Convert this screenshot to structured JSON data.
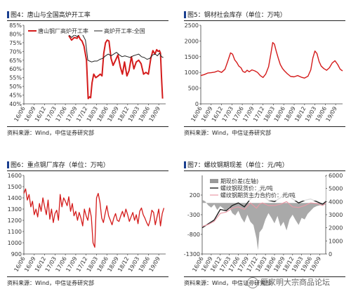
{
  "source_note": "资料来源：Wind，中信证券研究部",
  "watermark": "雁家明大宗商品论坛",
  "colors": {
    "red": "#d41b1b",
    "black": "#222222",
    "gray": "#9a9a9a",
    "pink": "#e89aa6",
    "accent": "#1a3f8f"
  },
  "chart_data": [
    {
      "type": "line",
      "title": "图4：唐山与全国高炉开工率",
      "legend_position": "top",
      "ylim": [
        40,
        85
      ],
      "yticks": [
        "85%",
        "80%",
        "75%",
        "70%",
        "65%",
        "60%",
        "55%",
        "50%",
        "45%",
        "40%"
      ],
      "ytick_values": [
        85,
        80,
        75,
        70,
        65,
        60,
        55,
        50,
        45,
        40
      ],
      "xlim": [
        0,
        41
      ],
      "xticks": [
        "16/06",
        "16/09",
        "16/12",
        "17/03",
        "17/06",
        "17/09",
        "17/12",
        "18/03",
        "18/06",
        "18/09",
        "18/12",
        "19/03",
        "19/06",
        "19/09"
      ],
      "xtick_positions": [
        0,
        3,
        6,
        9,
        12,
        15,
        18,
        21,
        24,
        27,
        30,
        33,
        36,
        39
      ],
      "series": [
        {
          "name": "唐山钢厂高炉开工率",
          "color": "#d41b1b",
          "width": 2,
          "x": [
            13,
            13.8,
            14.6,
            15.4,
            15.8,
            16.3,
            16.8,
            17.4,
            18.1,
            18.6,
            19.0,
            19.3,
            19.7,
            20.2,
            20.8,
            21.5,
            22.1,
            22.6,
            23.1,
            23.6,
            24.1,
            24.6,
            25.2,
            25.8,
            26.5,
            27.2,
            27.9,
            28.5,
            29.1,
            29.8,
            30.4,
            31.1,
            31.8,
            32.5,
            33.2,
            33.9,
            34.6,
            35.3,
            36.0,
            36.7,
            37.3,
            37.9,
            38.4,
            38.8,
            39.2,
            39.5,
            39.8,
            40.1
          ],
          "values": [
            79,
            76.5,
            78,
            77.5,
            79,
            77,
            76,
            73,
            65,
            43,
            44,
            43.5,
            52,
            57,
            55,
            56,
            57,
            56,
            69,
            75,
            76.5,
            76,
            66,
            62,
            65,
            68,
            61,
            57,
            64,
            56,
            59,
            67,
            60,
            64,
            65,
            63,
            57,
            58,
            57,
            66,
            70.5,
            68.5,
            71,
            70,
            70.5,
            69,
            55,
            43
          ]
        },
        {
          "name": "高炉开工率:全国",
          "color": "#222222",
          "width": 1,
          "x": [
            13,
            13.8,
            14.6,
            15.4,
            16.2,
            17.0,
            17.8,
            18.5,
            19.0,
            19.6,
            20.4,
            21.2,
            22.0,
            22.8,
            23.6,
            24.4,
            25.2,
            26.0,
            26.8,
            27.6,
            28.4,
            29.2,
            30.0,
            30.8,
            31.6,
            32.4,
            33.2,
            34.0,
            34.8,
            35.6,
            36.4,
            37.2,
            38.0,
            38.6,
            39.2,
            39.8,
            40.3
          ],
          "values": [
            79.5,
            78,
            79.5,
            78.5,
            80,
            79.5,
            76.5,
            65,
            64.5,
            64,
            64.5,
            64.5,
            65.5,
            66,
            67.5,
            68.5,
            67.5,
            68.5,
            69.5,
            68,
            67,
            67.5,
            67,
            66.5,
            67.5,
            68,
            68.5,
            67,
            66.5,
            65.5,
            66,
            68,
            68.5,
            67.5,
            69,
            67,
            66.5
          ]
        }
      ]
    },
    {
      "type": "line",
      "title": "图5：钢材社会库存（单位：万吨）",
      "ylim": [
        0,
        2500
      ],
      "yticks": [
        "2500",
        "2000",
        "1500",
        "1000",
        "500",
        "0"
      ],
      "ytick_values": [
        2500,
        2000,
        1500,
        1000,
        500,
        0
      ],
      "xlim": [
        0,
        41
      ],
      "xticks": [
        "16/06",
        "16/09",
        "16/12",
        "17/03",
        "17/06",
        "17/09",
        "17/12",
        "18/03",
        "18/06",
        "18/09",
        "18/12",
        "19/03",
        "19/06",
        "19/09"
      ],
      "xtick_positions": [
        0,
        3,
        6,
        9,
        12,
        15,
        18,
        21,
        24,
        27,
        30,
        33,
        36,
        39
      ],
      "series": [
        {
          "name": "钢材社会库存",
          "color": "#d41b1b",
          "width": 1.4,
          "x": [
            0,
            1,
            2,
            3,
            4,
            5,
            6,
            7,
            7.8,
            8.6,
            9.2,
            9.8,
            10.4,
            11.0,
            11.6,
            12.2,
            12.8,
            13.4,
            14.0,
            14.8,
            15.6,
            16.4,
            17.2,
            18.0,
            18.8,
            19.6,
            20.2,
            20.8,
            21.3,
            21.8,
            22.4,
            23.0,
            23.6,
            24.2,
            25.0,
            26.0,
            27.0,
            28.0,
            29.0,
            30.0,
            31.0,
            31.8,
            32.4,
            33.0,
            33.6,
            34.2,
            34.8,
            35.6,
            36.4,
            37.2,
            38.0,
            38.8,
            39.6,
            40.3,
            41
          ],
          "values": [
            900,
            930,
            980,
            990,
            1010,
            1050,
            1000,
            1100,
            1350,
            1620,
            1580,
            1400,
            1320,
            1200,
            1150,
            1030,
            1000,
            1070,
            1020,
            1080,
            1050,
            1000,
            900,
            840,
            950,
            1180,
            1550,
            1950,
            1900,
            1680,
            1450,
            1250,
            1130,
            1050,
            960,
            870,
            860,
            900,
            850,
            820,
            880,
            1080,
            1450,
            1680,
            1600,
            1350,
            1200,
            1120,
            1070,
            1150,
            1300,
            1370,
            1250,
            1100,
            1050
          ]
        }
      ]
    },
    {
      "type": "line",
      "title": "图6：重点钢厂库存（单位：万吨）",
      "ylim": [
        900,
        1600
      ],
      "yticks": [
        "1600",
        "1500",
        "1400",
        "1300",
        "1200",
        "1100",
        "1000",
        "900"
      ],
      "ytick_values": [
        1600,
        1500,
        1400,
        1300,
        1200,
        1100,
        1000,
        900
      ],
      "xlim": [
        0,
        41
      ],
      "xticks": [
        "16/06",
        "16/09",
        "16/12",
        "17/03",
        "17/06",
        "17/09",
        "17/12",
        "18/03",
        "18/06",
        "18/09",
        "18/12",
        "19/03",
        "19/06",
        "19/09"
      ],
      "xtick_positions": [
        0,
        3,
        6,
        9,
        12,
        15,
        18,
        21,
        24,
        27,
        30,
        33,
        36,
        39
      ],
      "series": [
        {
          "name": "重点钢厂库存",
          "color": "#d41b1b",
          "width": 1.3,
          "x": [
            0,
            0.5,
            1,
            1.5,
            2,
            2.5,
            3,
            3.5,
            4,
            4.5,
            5,
            5.5,
            6,
            6.5,
            7,
            7.5,
            8,
            8.5,
            9,
            9.5,
            10,
            10.5,
            11,
            11.5,
            12,
            12.5,
            13,
            13.5,
            14,
            14.5,
            15,
            15.5,
            16,
            16.5,
            17,
            17.5,
            18,
            18.5,
            19,
            19.5,
            20,
            20.5,
            21,
            21.5,
            22,
            22.5,
            23,
            23.5,
            24,
            24.5,
            25,
            25.5,
            26,
            26.5,
            27,
            27.5,
            28,
            28.5,
            29,
            29.5,
            30,
            30.5,
            31,
            31.5,
            32,
            32.5,
            33,
            33.5,
            34,
            34.5,
            35,
            35.5,
            36,
            36.5,
            37,
            37.5,
            38,
            38.5,
            39,
            39.5,
            40,
            40.5
          ],
          "values": [
            1440,
            1480,
            1380,
            1430,
            1320,
            1370,
            1250,
            1300,
            1230,
            1350,
            1280,
            1400,
            1320,
            1250,
            1380,
            1210,
            1300,
            1180,
            1260,
            1290,
            1200,
            1430,
            1320,
            1400,
            1370,
            1330,
            1410,
            1280,
            1350,
            1240,
            1280,
            1200,
            1270,
            1220,
            1150,
            1300,
            1240,
            1200,
            1310,
            1230,
            1000,
            960,
            1400,
            1440,
            1360,
            1220,
            1180,
            1260,
            1330,
            1240,
            1200,
            1160,
            1220,
            1260,
            1200,
            1190,
            1240,
            1280,
            1230,
            1300,
            1250,
            1190,
            1230,
            1270,
            1200,
            1250,
            1170,
            1280,
            1310,
            1250,
            1220,
            1180,
            1150,
            1200,
            1290,
            1270,
            1160,
            1230,
            1300,
            1150,
            1260,
            1310
          ]
        }
      ]
    },
    {
      "type": "area",
      "title": "图7：螺纹钢期现差（单位：元/吨）",
      "legend_position": "top",
      "ylim": [
        -1300,
        700
      ],
      "yticks": [
        "200",
        "-300",
        "-800",
        "-1300"
      ],
      "ytick_values": [
        200,
        -300,
        -800,
        -1300
      ],
      "y2lim": [
        0,
        6000
      ],
      "y2ticks": [
        "6000",
        "5000",
        "4000",
        "3000",
        "2000",
        "1000",
        "0"
      ],
      "y2tick_values": [
        6000,
        5000,
        4000,
        3000,
        2000,
        1000,
        0
      ],
      "xlim": [
        0,
        41
      ],
      "xticks": [
        "16/06",
        "16/09",
        "16/12",
        "17/03",
        "17/06",
        "17/09",
        "17/12",
        "18/03",
        "18/06",
        "18/09",
        "18/12",
        "19/03",
        "19/06",
        "19/09"
      ],
      "xtick_positions": [
        0,
        3,
        6,
        9,
        12,
        15,
        18,
        21,
        24,
        27,
        30,
        33,
        36,
        39
      ],
      "series": [
        {
          "name": "期现价差(左轴)",
          "color": "#9a9a9a",
          "axis": "left",
          "kind": "area",
          "x": [
            0,
            1,
            2,
            3,
            4,
            5,
            6,
            7,
            8,
            9,
            10,
            11,
            12,
            13,
            14,
            15,
            16,
            17,
            18,
            18.5,
            19,
            20,
            21,
            22,
            23,
            24,
            25,
            26,
            27,
            28,
            29,
            30,
            31,
            32,
            33,
            34,
            35,
            36,
            37,
            38,
            39,
            40,
            41
          ],
          "values": [
            80,
            40,
            -60,
            -120,
            -40,
            -180,
            -80,
            -140,
            -220,
            -100,
            -260,
            -320,
            -200,
            -380,
            -500,
            -300,
            -480,
            -560,
            -900,
            -1200,
            -750,
            -650,
            -420,
            -260,
            -380,
            -520,
            -330,
            -600,
            -480,
            -700,
            -420,
            -300,
            -440,
            -560,
            -380,
            -420,
            -280,
            -200,
            -120,
            -80,
            -60,
            -40,
            -50
          ]
        },
        {
          "name": "螺纹钢现货价：元/吨",
          "color": "#222222",
          "axis": "right",
          "kind": "line",
          "width": 1.4,
          "x": [
            0,
            2,
            4,
            6,
            8,
            10,
            12,
            14,
            16,
            18,
            19,
            20,
            22,
            24,
            26,
            28,
            30,
            32,
            34,
            36,
            38,
            40,
            41
          ],
          "values": [
            2000,
            2300,
            2600,
            3400,
            3300,
            3700,
            3900,
            3600,
            4200,
            4600,
            4900,
            4500,
            4100,
            4000,
            4300,
            4700,
            4200,
            3900,
            4100,
            4200,
            4000,
            3800,
            4000
          ]
        },
        {
          "name": "螺纹钢期货主力合约价：元/吨",
          "color": "#e89aa6",
          "axis": "right",
          "kind": "line",
          "width": 1.2,
          "x": [
            0,
            2,
            4,
            6,
            8,
            10,
            12,
            14,
            16,
            18,
            19,
            20,
            22,
            24,
            26,
            28,
            30,
            32,
            34,
            36,
            38,
            40,
            41
          ],
          "values": [
            2100,
            2250,
            2500,
            3100,
            3200,
            3500,
            3600,
            3400,
            3900,
            3500,
            3800,
            3900,
            3700,
            3700,
            3800,
            4000,
            3600,
            3550,
            3700,
            3900,
            3850,
            3700,
            3900
          ]
        }
      ]
    }
  ]
}
